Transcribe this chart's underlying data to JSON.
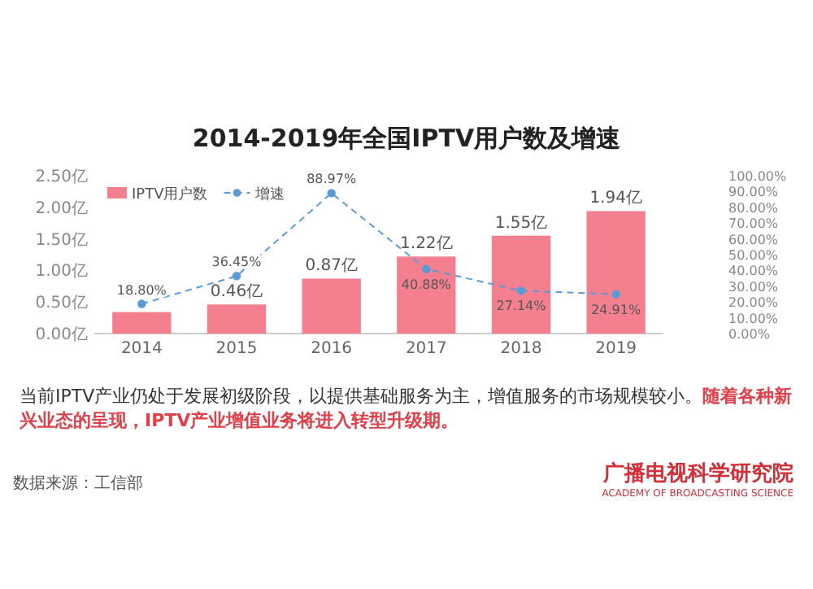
{
  "chart_data": {
    "type": "bar",
    "title": "2014-2019年全国IPTV用户数及增速",
    "categories": [
      "2014",
      "2015",
      "2016",
      "2017",
      "2018",
      "2019"
    ],
    "series": [
      {
        "name": "IPTV用户数",
        "color": "#f4808f",
        "values": [
          0.34,
          0.46,
          0.87,
          1.22,
          1.55,
          1.94
        ],
        "value_labels": [
          null,
          "0.46亿",
          "0.87亿",
          "1.22亿",
          "1.55亿",
          "1.94亿"
        ]
      },
      {
        "name": "增速",
        "type": "line",
        "axis": "y2",
        "color": "#5b9bd5",
        "marker": "circle",
        "line_style": "dashed",
        "values": [
          18.8,
          36.45,
          88.97,
          40.88,
          27.14,
          24.91
        ],
        "value_labels": [
          "18.80%",
          "36.45%",
          "88.97%",
          "40.88%",
          "27.14%",
          "24.91%"
        ]
      }
    ],
    "ylim": [
      0,
      2.5
    ],
    "yticks": [
      {
        "value": 0,
        "label": "0.00亿"
      },
      {
        "value": 0.5,
        "label": "0.50亿"
      },
      {
        "value": 1,
        "label": "1.00亿"
      },
      {
        "value": 1.5,
        "label": "1.50亿"
      },
      {
        "value": 2,
        "label": "2.00亿"
      },
      {
        "value": 2.5,
        "label": "2.50亿"
      }
    ],
    "y2lim": [
      0,
      100
    ],
    "y2ticks": [
      {
        "value": 0,
        "label": "0.00%"
      },
      {
        "value": 10,
        "label": "10.00%"
      },
      {
        "value": 20,
        "label": "20.00%"
      },
      {
        "value": 30,
        "label": "30.00%"
      },
      {
        "value": 40,
        "label": "40.00%"
      },
      {
        "value": 50,
        "label": "50.00%"
      },
      {
        "value": 60,
        "label": "60.00%"
      },
      {
        "value": 70,
        "label": "70.00%"
      },
      {
        "value": 80,
        "label": "80.00%"
      },
      {
        "value": 90,
        "label": "90.00%"
      },
      {
        "value": 100,
        "label": "100.00%"
      }
    ],
    "legend": "top left",
    "annotations": [
      "当前IPTV产业仍处于发展初级阶段，以提供基础服务为主，增值服务的市场规模较小。",
      "随着各种新兴业态的呈现，IPTV产业增值业务将进入转型升级期。",
      "数据来源：工信部",
      "广播电视科学研究院",
      "ACADEMY OF BROADCASTING SCIENCE"
    ]
  }
}
